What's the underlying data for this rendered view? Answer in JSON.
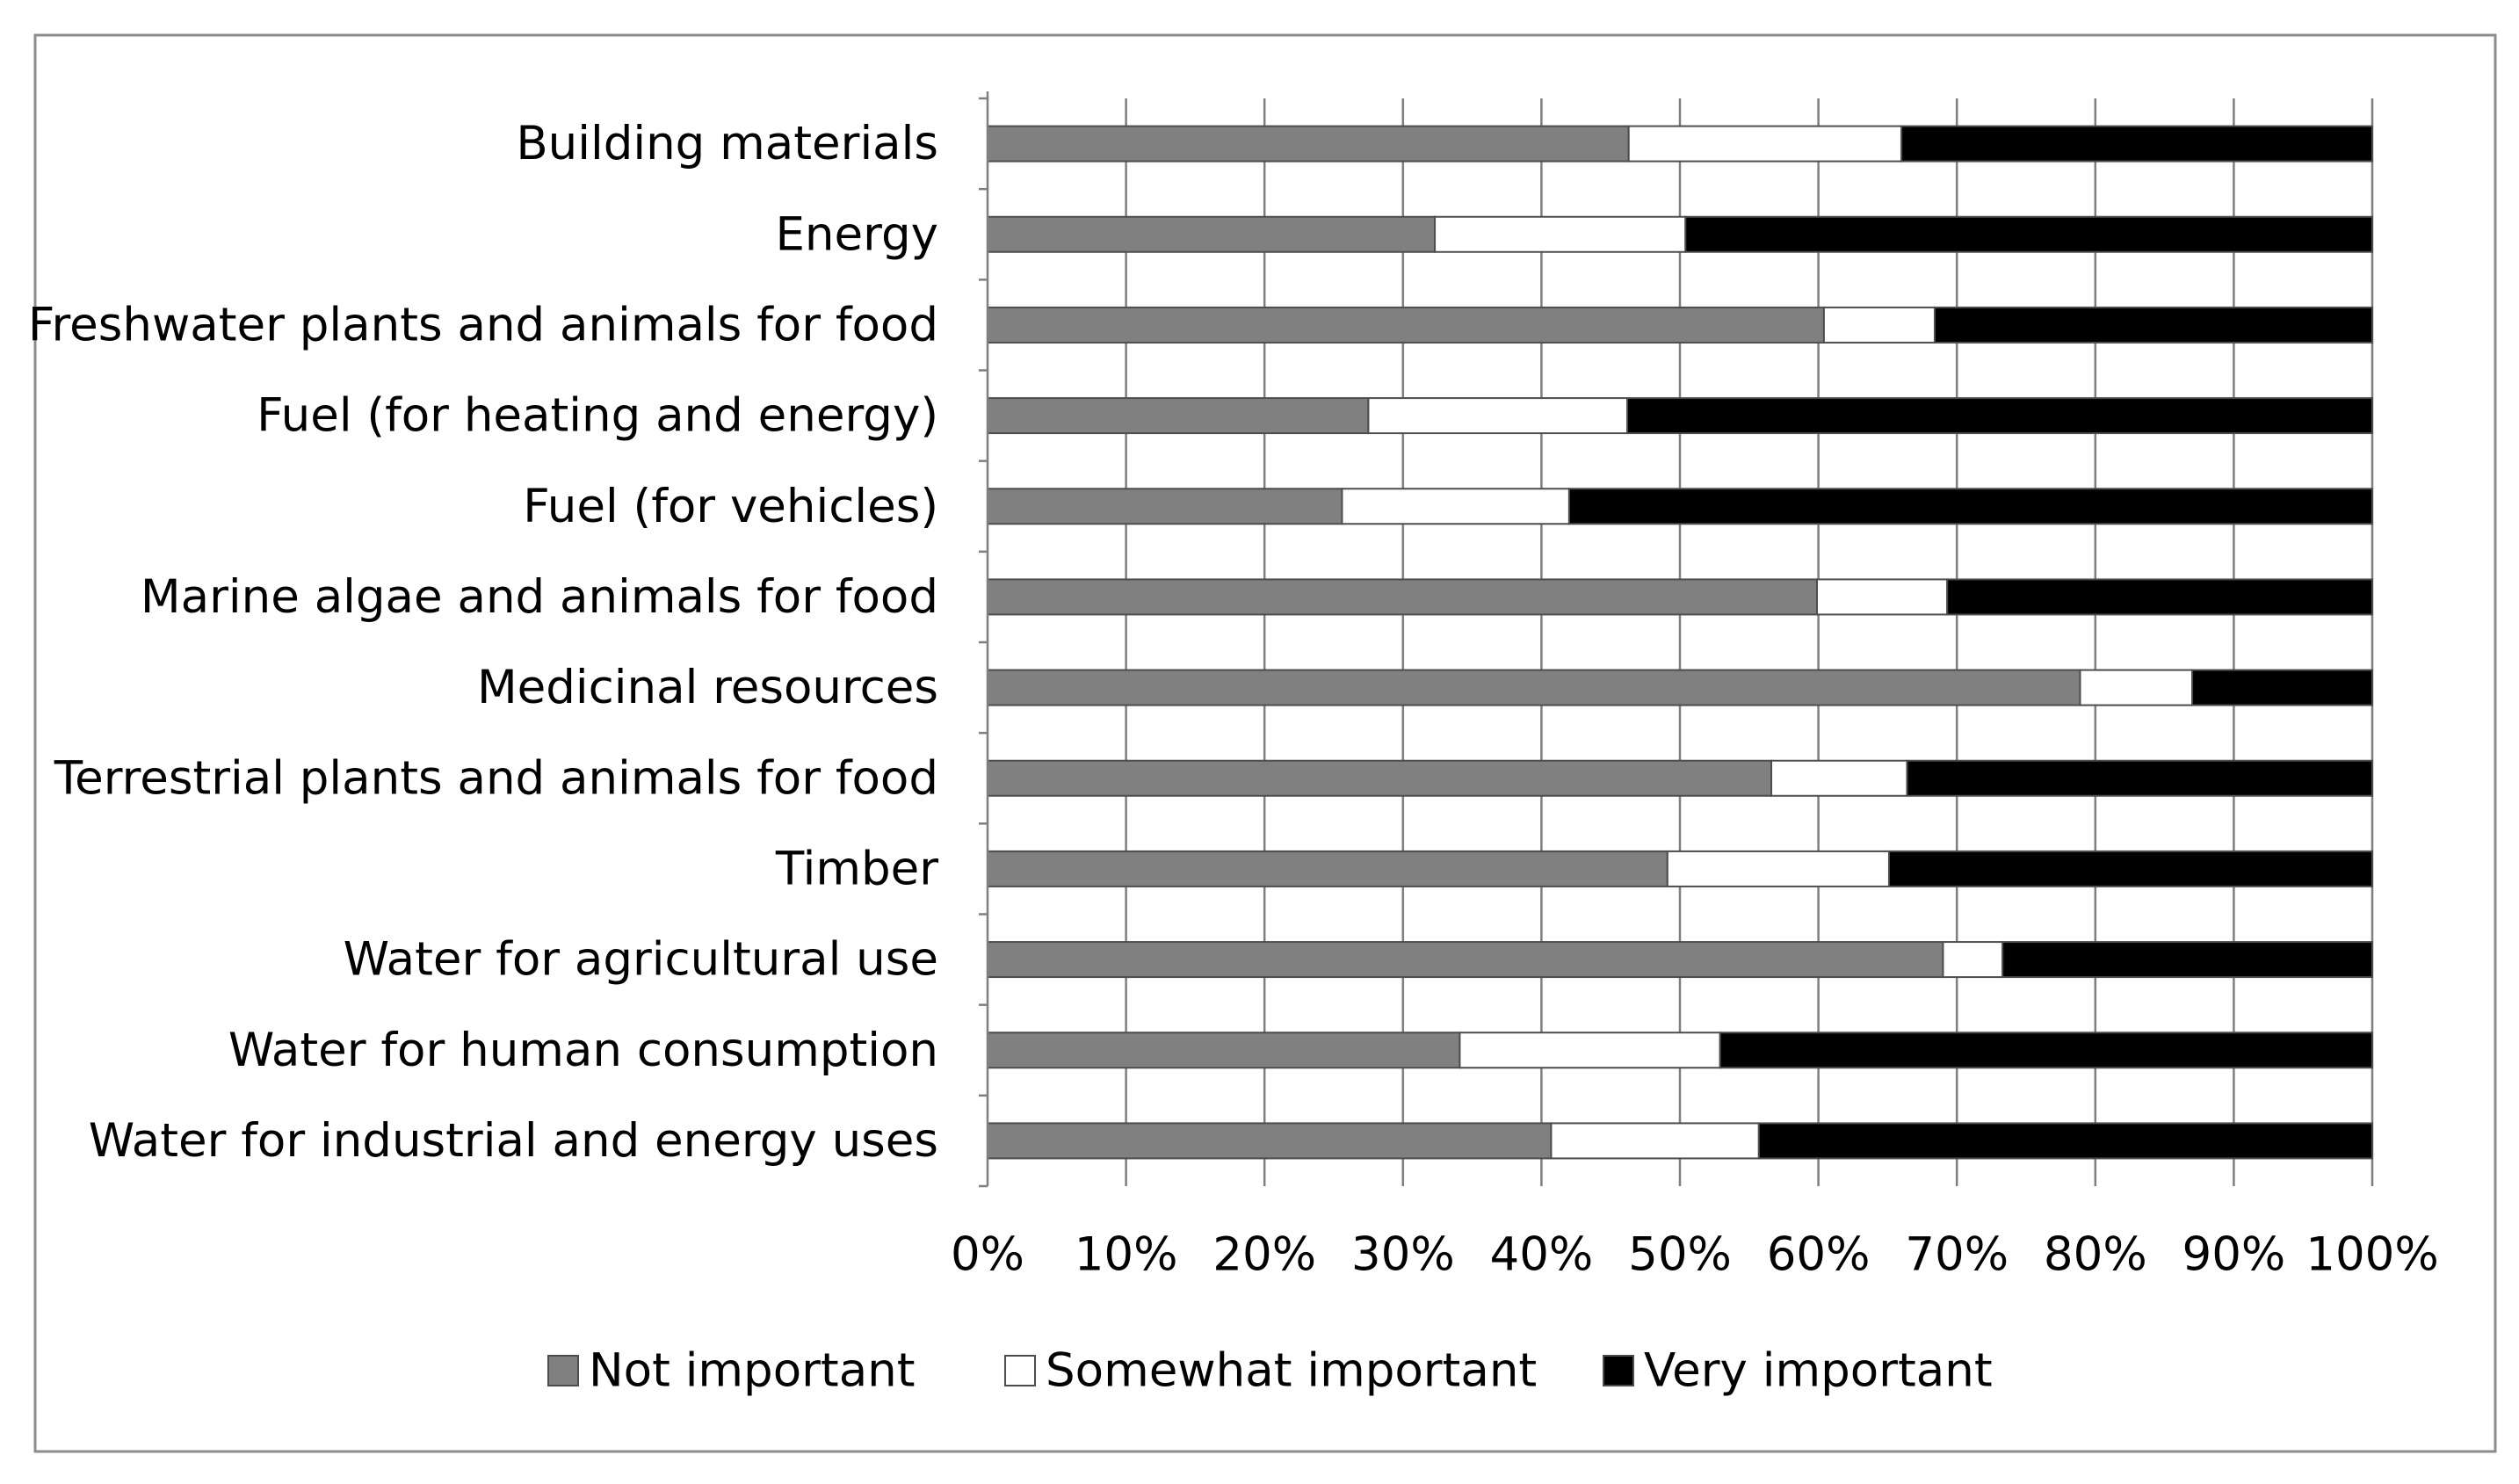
{
  "chart_data": {
    "type": "bar",
    "orientation": "horizontal",
    "stacked": "percent",
    "title": "",
    "xlabel": "",
    "ylabel": "",
    "xlim": [
      0,
      100
    ],
    "grid": true,
    "legend_position": "bottom",
    "categories": [
      "Building materials",
      "Energy",
      "Freshwater plants and animals for food",
      "Fuel (for heating and energy)",
      "Fuel (for vehicles)",
      "Marine algae and animals for food",
      "Medicinal resources",
      "Terrestrial plants and animals for food",
      "Timber",
      "Water for agricultural use",
      "Water for human consumption",
      "Water for industrial and energy uses"
    ],
    "x_tick_labels": [
      "0%",
      "10%",
      "20%",
      "30%",
      "40%",
      "50%",
      "60%",
      "70%",
      "80%",
      "90%",
      "100%"
    ],
    "series": [
      {
        "name": "Not important",
        "color": "#808080",
        "values": [
          46.3,
          32.3,
          60.4,
          27.5,
          25.6,
          59.9,
          78.9,
          56.6,
          49.1,
          69.0,
          34.1,
          40.7
        ]
      },
      {
        "name": "Somewhat important",
        "color": "#ffffff",
        "values": [
          19.7,
          18.1,
          8.0,
          18.7,
          16.4,
          9.4,
          8.1,
          9.8,
          16.0,
          4.3,
          18.8,
          15.0
        ]
      },
      {
        "name": "Very important",
        "color": "#000000",
        "values": [
          34.0,
          49.6,
          31.6,
          53.8,
          58.0,
          30.7,
          13.0,
          33.6,
          34.9,
          26.7,
          47.1,
          44.3
        ]
      }
    ]
  }
}
